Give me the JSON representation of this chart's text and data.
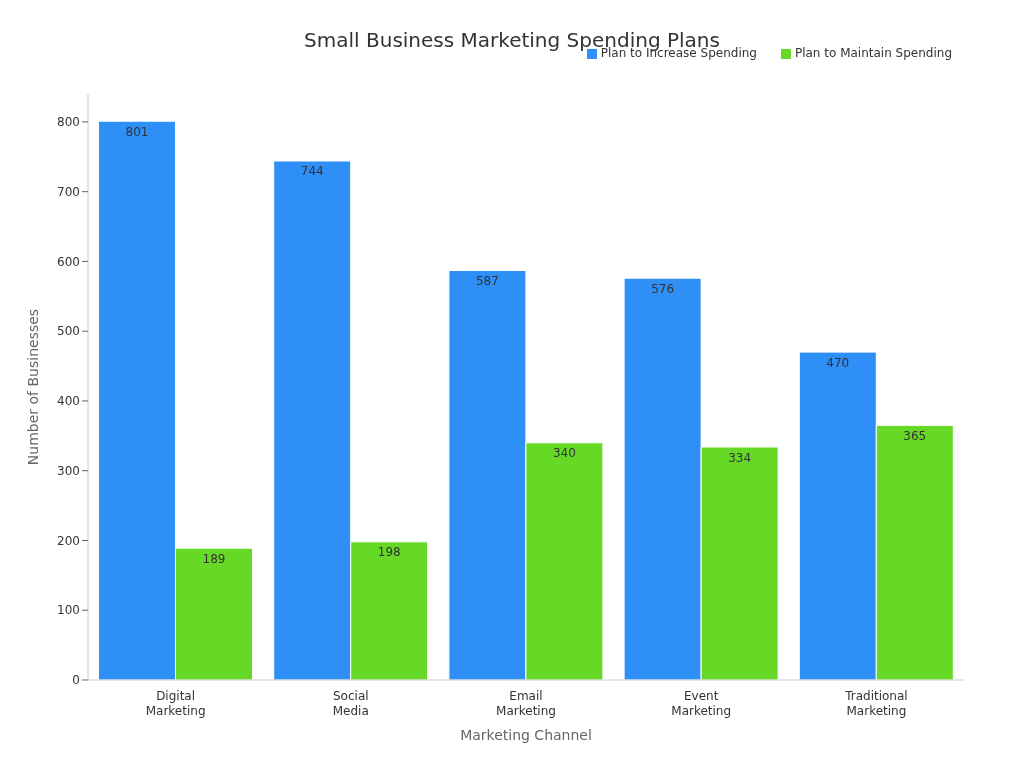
{
  "chart_data": {
    "type": "bar",
    "title": "Small Business Marketing Spending Plans",
    "xlabel": "Marketing Channel",
    "ylabel": "Number of Businesses",
    "categories": [
      "Digital Marketing",
      "Social Media",
      "Email Marketing",
      "Event Marketing",
      "Traditional Marketing"
    ],
    "series": [
      {
        "name": "Plan to Increase Spending",
        "color": "#2e90f7",
        "values": [
          801,
          744,
          587,
          576,
          470
        ]
      },
      {
        "name": "Plan to Maintain Spending",
        "color": "#66d926",
        "values": [
          189,
          198,
          340,
          334,
          365
        ]
      }
    ],
    "ylim": [
      0,
      840
    ],
    "yticks": [
      0,
      100,
      200,
      300,
      400,
      500,
      600,
      700,
      800
    ],
    "grid": false,
    "legend": "top right",
    "data_labels": true
  }
}
